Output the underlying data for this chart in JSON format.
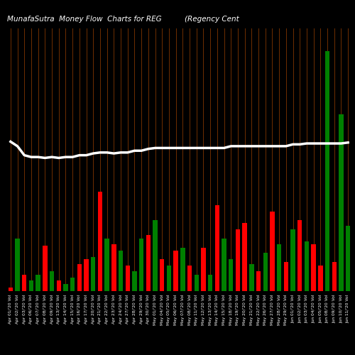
{
  "title_left": "MunafaSutra  Money Flow  Charts for REG",
  "title_right": "(Regency Cent",
  "background_color": "#000000",
  "bar_colors": [
    "red",
    "green",
    "red",
    "green",
    "green",
    "red",
    "green",
    "red",
    "green",
    "green",
    "red",
    "red",
    "green",
    "red",
    "green",
    "red",
    "green",
    "red",
    "green",
    "green",
    "red",
    "green",
    "red",
    "green",
    "red",
    "green",
    "red",
    "green",
    "red",
    "green",
    "red",
    "green",
    "green",
    "red",
    "red",
    "green",
    "red",
    "green",
    "red",
    "green",
    "red",
    "green",
    "red",
    "green",
    "red",
    "red",
    "green",
    "red",
    "green",
    "green"
  ],
  "bar_values": [
    4,
    58,
    18,
    12,
    18,
    50,
    22,
    12,
    8,
    15,
    30,
    35,
    38,
    110,
    58,
    52,
    45,
    28,
    22,
    58,
    62,
    78,
    35,
    28,
    45,
    48,
    28,
    18,
    48,
    18,
    95,
    58,
    35,
    68,
    75,
    30,
    22,
    42,
    88,
    52,
    32,
    68,
    78,
    55,
    52,
    28,
    265,
    32,
    195,
    72
  ],
  "line_values": [
    165,
    160,
    150,
    148,
    148,
    147,
    148,
    147,
    148,
    148,
    150,
    150,
    152,
    153,
    153,
    152,
    153,
    153,
    155,
    155,
    157,
    158,
    158,
    158,
    158,
    158,
    158,
    158,
    158,
    158,
    158,
    158,
    160,
    160,
    160,
    160,
    160,
    160,
    160,
    160,
    160,
    162,
    162,
    163,
    163,
    163,
    163,
    163,
    163,
    164
  ],
  "vline_color": "#7B3300",
  "bar_width": 0.65,
  "line_color": "#ffffff",
  "line_width": 2.5,
  "ylim_max": 290,
  "text_color": "#ffffff",
  "title_fontsize": 7.5,
  "tick_fontsize": 4.2,
  "labels": [
    "Apr 01/'20 Vol",
    "Apr 02/'20 Vol",
    "Apr 03/'20 Vol",
    "Apr 06/'20 Vol",
    "Apr 07/'20 Vol",
    "Apr 08/'20 Vol",
    "Apr 09/'20 Vol",
    "Apr 13/'20 Vol",
    "Apr 14/'20 Vol",
    "Apr 15/'20 Vol",
    "Apr 16/'20 Vol",
    "Apr 17/'20 Vol",
    "Apr 20/'20 Vol",
    "Apr 21/'20 Vol",
    "Apr 22/'20 Vol",
    "Apr 23/'20 Vol",
    "Apr 24/'20 Vol",
    "Apr 27/'20 Vol",
    "Apr 28/'20 Vol",
    "Apr 29/'20 Vol",
    "Apr 30/'20 Vol",
    "May 01/'20 Vol",
    "May 04/'20 Vol",
    "May 05/'20 Vol",
    "May 06/'20 Vol",
    "May 07/'20 Vol",
    "May 08/'20 Vol",
    "May 11/'20 Vol",
    "May 12/'20 Vol",
    "May 13/'20 Vol",
    "May 14/'20 Vol",
    "May 15/'20 Vol",
    "May 18/'20 Vol",
    "May 19/'20 Vol",
    "May 20/'20 Vol",
    "May 21/'20 Vol",
    "May 22/'20 Vol",
    "May 26/'20 Vol",
    "May 27/'20 Vol",
    "May 28/'20 Vol",
    "May 29/'20 Vol",
    "Jun 01/'20 Vol",
    "Jun 02/'20 Vol",
    "Jun 03/'20 Vol",
    "Jun 04/'20 Vol",
    "Jun 05/'20 Vol",
    "Jun 08/'20 Vol",
    "Jun 09/'20 Vol",
    "Jun 10/'20 Vol",
    "Jun 11/'20 Vol"
  ]
}
